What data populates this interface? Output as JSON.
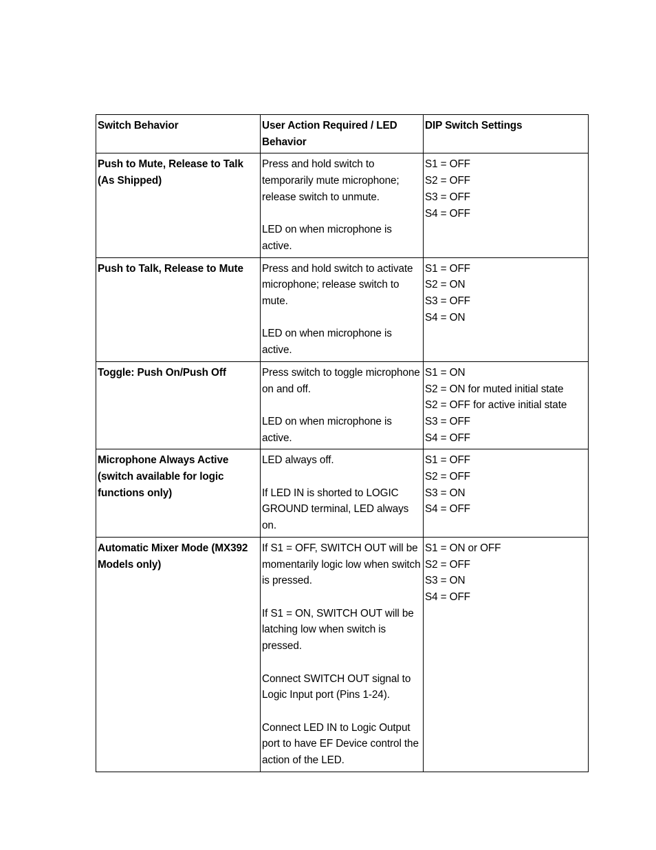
{
  "table": {
    "headers": {
      "col1": "Switch Behavior",
      "col2": "User Action Required / LED Behavior",
      "col3": "DIP Switch Settings"
    },
    "rows": [
      {
        "behavior": "Push to Mute, Release to Talk (As Shipped)",
        "action_p1": "Press and hold switch to temporarily mute microphone; release switch to unmute.",
        "action_p2": "LED on when microphone is active.",
        "dip": [
          "S1 = OFF",
          "S2 = OFF",
          "S3 = OFF",
          "S4 = OFF"
        ]
      },
      {
        "behavior": "Push to Talk, Release to Mute",
        "action_p1": "Press and hold switch to activate microphone; release switch to mute.",
        "action_p2": "LED on when microphone is active.",
        "dip": [
          "S1 = OFF",
          "S2 = ON",
          "S3 = OFF",
          "S4 = ON"
        ]
      },
      {
        "behavior": "Toggle:  Push On/Push Off",
        "action_p1": "Press switch to toggle microphone on and off.",
        "action_p2": "LED on when microphone is active.",
        "dip": [
          "S1 = ON",
          "S2 = ON for muted initial state",
          "S2 = OFF for active initial state",
          "S3 = OFF",
          "S4 = OFF"
        ]
      },
      {
        "behavior": "Microphone Always Active (switch available for logic functions only)",
        "action_p1": "LED always off.",
        "action_p2": "If LED IN is shorted to LOGIC GROUND terminal, LED always on.",
        "dip": [
          "S1 = OFF",
          "S2 = OFF",
          "S3 = ON",
          "S4 = OFF"
        ]
      },
      {
        "behavior": "Automatic Mixer Mode (MX392 Models only)",
        "action_p1": "If S1 = OFF, SWITCH OUT will be momentarily logic low when switch is pressed.",
        "action_p2": "If S1 = ON, SWITCH OUT will be latching low when switch is pressed.",
        "action_p3": "Connect SWITCH OUT signal to Logic Input port (Pins 1-24).",
        "action_p4": "Connect LED IN to Logic Output port to have EF Device control the action of the LED.",
        "dip": [
          "S1 = ON or OFF",
          "S2 = OFF",
          "S3 = ON",
          "S4 = OFF"
        ]
      }
    ]
  }
}
